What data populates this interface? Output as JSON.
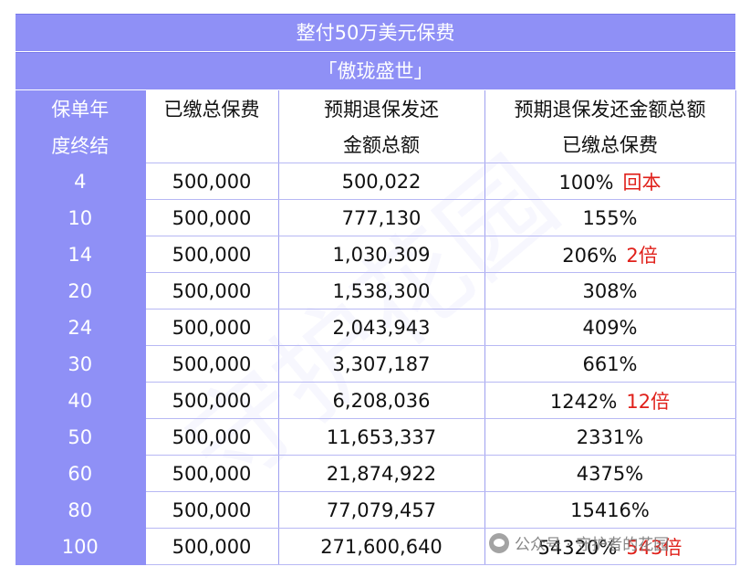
{
  "title": "整付50万美元保费",
  "product": "「傲珑盛世」",
  "headers": {
    "year_line1": "保单年",
    "year_line2": "度终结",
    "paid_line1": "已缴总保费",
    "paid_line2": "",
    "surrender_line1": "预期退保发还",
    "surrender_line2": "金额总额",
    "ratio_line1": "预期退保发还金额总额",
    "ratio_line2": "已缴总保费"
  },
  "rows": [
    {
      "year": "4",
      "paid": "500,000",
      "surrender": "500,022",
      "ratio": "100%",
      "note": "回本"
    },
    {
      "year": "10",
      "paid": "500,000",
      "surrender": "777,130",
      "ratio": "155%",
      "note": ""
    },
    {
      "year": "14",
      "paid": "500,000",
      "surrender": "1,030,309",
      "ratio": "206%",
      "note": "2倍"
    },
    {
      "year": "20",
      "paid": "500,000",
      "surrender": "1,538,300",
      "ratio": "308%",
      "note": ""
    },
    {
      "year": "24",
      "paid": "500,000",
      "surrender": "2,043,943",
      "ratio": "409%",
      "note": ""
    },
    {
      "year": "30",
      "paid": "500,000",
      "surrender": "3,307,187",
      "ratio": "661%",
      "note": ""
    },
    {
      "year": "40",
      "paid": "500,000",
      "surrender": "6,208,036",
      "ratio": "1242%",
      "note": "12倍"
    },
    {
      "year": "50",
      "paid": "500,000",
      "surrender": "11,653,337",
      "ratio": "2331%",
      "note": ""
    },
    {
      "year": "60",
      "paid": "500,000",
      "surrender": "21,874,922",
      "ratio": "4375%",
      "note": ""
    },
    {
      "year": "80",
      "paid": "500,000",
      "surrender": "77,079,457",
      "ratio": "15416%",
      "note": ""
    },
    {
      "year": "100",
      "paid": "500,000",
      "surrender": "271,600,640",
      "ratio": "54320%",
      "note": "543倍"
    }
  ],
  "watermark": {
    "text": "公众号 · 守护者的花园",
    "icon": "wechat-icon"
  },
  "colors": {
    "header_bg": "#8f90f6",
    "highlight": "#e0201a"
  }
}
